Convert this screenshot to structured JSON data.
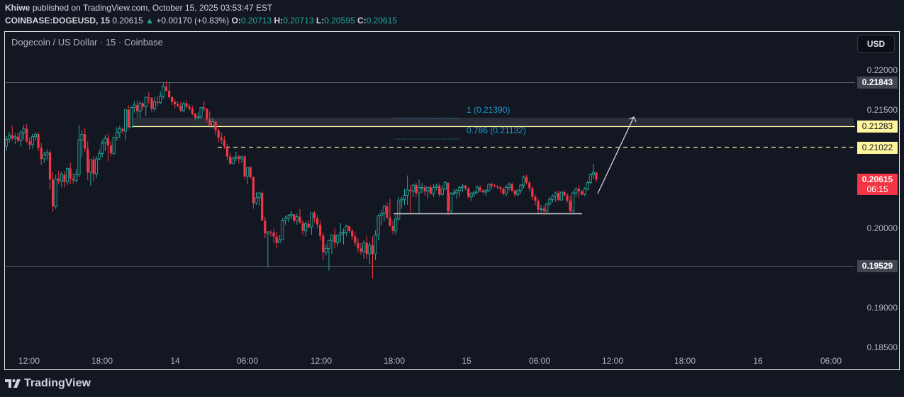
{
  "header": {
    "author": "Khiwe",
    "published_text": "published on TradingView.com, October 15, 2025 03:53:47 EST",
    "symbol": "COINBASE:DOGEUSD, 15",
    "last": "0.20615",
    "change_icon": "triangle-up-icon",
    "change": "+0.00170 (+0.83%)",
    "open_label": "O:",
    "open": "0.20713",
    "high_label": "H:",
    "high": "0.20713",
    "low_label": "L:",
    "low": "0.20595",
    "close_label": "C:",
    "close": "0.20615"
  },
  "chart_title": "Dogecoin / US Dollar · 15 · Coinbase",
  "currency_button": "USD",
  "price_axis": {
    "ticks": [
      "0.22000",
      "0.21500",
      "0.20000",
      "0.19000",
      "0.18500"
    ],
    "tags": {
      "level_high": "0.21843",
      "zone_line": "0.21283",
      "dashed_line": "0.21022",
      "current_price": "0.20615",
      "countdown": "06:15",
      "level_low": "0.19529"
    }
  },
  "time_axis": {
    "ticks": [
      "12:00",
      "18:00",
      "14",
      "06:00",
      "12:00",
      "18:00",
      "15",
      "06:00",
      "12:00",
      "18:00",
      "16",
      "06:00"
    ]
  },
  "fib": {
    "level_1": "1 (0.21390)",
    "level_0786": "0.786 (0.21132)"
  },
  "branding": {
    "logo_text": "TradingView",
    "logo_icon": "tradingview-logo-icon"
  },
  "colors": {
    "up": "#26a69a",
    "down": "#f23645",
    "background": "#131722",
    "zone": "#2a2e39",
    "yellow": "#fff59d",
    "fib": "#2196c8"
  },
  "chart_data": {
    "type": "candlestick",
    "title": "Dogecoin / US Dollar · 15 · Coinbase",
    "interval": "15m",
    "xlabel": "",
    "ylabel": "USD",
    "ylim": [
      0.1835,
      0.2225
    ],
    "x_ticks": [
      "12:00",
      "18:00",
      "14",
      "06:00",
      "12:00",
      "18:00",
      "15",
      "06:00",
      "12:00",
      "18:00",
      "16",
      "06:00"
    ],
    "y_ticks": [
      0.22,
      0.215,
      0.2,
      0.19,
      0.185
    ],
    "horizontal_levels": [
      {
        "price": 0.21843,
        "style": "solid",
        "color": "#787b86",
        "label": "0.21843"
      },
      {
        "price": 0.21283,
        "style": "solid",
        "color": "#fff59d",
        "label": "0.21283"
      },
      {
        "price": 0.21022,
        "style": "dashed",
        "color": "#fff59d",
        "label": "0.21022"
      },
      {
        "price": 0.19529,
        "style": "solid",
        "color": "#787b86",
        "label": "0.19529"
      }
    ],
    "zone": {
      "from": 0.21283,
      "to": 0.2139,
      "color": "#2a2e39"
    },
    "fibonacci": [
      {
        "level": 1,
        "price": 0.2139
      },
      {
        "level": 0.786,
        "price": 0.21132
      }
    ],
    "range_support": 0.20205,
    "projection_arrow": {
      "from_price": 0.204,
      "to_price": 0.2143
    },
    "last": {
      "open": 0.20713,
      "high": 0.20713,
      "low": 0.20595,
      "close": 0.20615,
      "change": 0.0017,
      "change_pct": 0.83
    },
    "candles": [
      [
        0.2104,
        0.2117,
        0.2098,
        0.2113
      ],
      [
        0.2113,
        0.2122,
        0.2108,
        0.2118
      ],
      [
        0.2118,
        0.213,
        0.2111,
        0.2114
      ],
      [
        0.2114,
        0.212,
        0.2107,
        0.2116
      ],
      [
        0.2116,
        0.2121,
        0.2109,
        0.2111
      ],
      [
        0.2111,
        0.2124,
        0.2104,
        0.2121
      ],
      [
        0.2121,
        0.2131,
        0.2113,
        0.2126
      ],
      [
        0.2126,
        0.2132,
        0.2108,
        0.211
      ],
      [
        0.211,
        0.2115,
        0.21,
        0.2106
      ],
      [
        0.2106,
        0.212,
        0.2101,
        0.2116
      ],
      [
        0.2116,
        0.2122,
        0.2111,
        0.2119
      ],
      [
        0.2119,
        0.2122,
        0.2098,
        0.2102
      ],
      [
        0.2102,
        0.2108,
        0.208,
        0.2088
      ],
      [
        0.2088,
        0.2097,
        0.2083,
        0.2093
      ],
      [
        0.2093,
        0.21,
        0.2086,
        0.2096
      ],
      [
        0.2096,
        0.2099,
        0.2049,
        0.2062
      ],
      [
        0.2062,
        0.2071,
        0.2021,
        0.2028
      ],
      [
        0.2028,
        0.2068,
        0.2025,
        0.2063
      ],
      [
        0.2063,
        0.2073,
        0.2056,
        0.206
      ],
      [
        0.206,
        0.2072,
        0.2052,
        0.2068
      ],
      [
        0.2068,
        0.2072,
        0.2052,
        0.2059
      ],
      [
        0.2059,
        0.2077,
        0.2055,
        0.2076
      ],
      [
        0.2076,
        0.2083,
        0.2056,
        0.2063
      ],
      [
        0.2063,
        0.207,
        0.2057,
        0.2061
      ],
      [
        0.2061,
        0.2075,
        0.2058,
        0.2068
      ],
      [
        0.2068,
        0.2131,
        0.2065,
        0.2112
      ],
      [
        0.2112,
        0.2124,
        0.209,
        0.2119
      ],
      [
        0.2119,
        0.2127,
        0.2096,
        0.2101
      ],
      [
        0.2101,
        0.211,
        0.2061,
        0.2071
      ],
      [
        0.2071,
        0.2086,
        0.2054,
        0.2087
      ],
      [
        0.2087,
        0.2091,
        0.206,
        0.2069
      ],
      [
        0.2069,
        0.2092,
        0.2064,
        0.2088
      ],
      [
        0.2088,
        0.21,
        0.2086,
        0.2095
      ],
      [
        0.2095,
        0.2112,
        0.209,
        0.2108
      ],
      [
        0.2108,
        0.2118,
        0.2098,
        0.2114
      ],
      [
        0.2114,
        0.212,
        0.2085,
        0.2105
      ],
      [
        0.2105,
        0.2111,
        0.2092,
        0.2095
      ],
      [
        0.2095,
        0.2116,
        0.2093,
        0.2115
      ],
      [
        0.2115,
        0.2128,
        0.2111,
        0.2121
      ],
      [
        0.2121,
        0.213,
        0.2114,
        0.2126
      ],
      [
        0.2126,
        0.2128,
        0.212,
        0.2123
      ],
      [
        0.2123,
        0.214,
        0.2112,
        0.215
      ],
      [
        0.215,
        0.2156,
        0.2126,
        0.2128
      ],
      [
        0.2128,
        0.2154,
        0.2128,
        0.2153
      ],
      [
        0.2153,
        0.2161,
        0.2146,
        0.2156
      ],
      [
        0.2156,
        0.2162,
        0.214,
        0.2148
      ],
      [
        0.2148,
        0.2161,
        0.2139,
        0.2158
      ],
      [
        0.2158,
        0.216,
        0.215,
        0.2154
      ],
      [
        0.2154,
        0.2162,
        0.2142,
        0.2166
      ],
      [
        0.2166,
        0.2172,
        0.2158,
        0.2165
      ],
      [
        0.2165,
        0.2166,
        0.2147,
        0.2151
      ],
      [
        0.2151,
        0.2166,
        0.2148,
        0.216
      ],
      [
        0.216,
        0.2167,
        0.2154,
        0.2159
      ],
      [
        0.2159,
        0.2173,
        0.2157,
        0.2167
      ],
      [
        0.2167,
        0.2184,
        0.2164,
        0.2179
      ],
      [
        0.2179,
        0.2186,
        0.2173,
        0.2174
      ],
      [
        0.2174,
        0.2184,
        0.2164,
        0.2166
      ],
      [
        0.2166,
        0.2167,
        0.2156,
        0.216
      ],
      [
        0.216,
        0.2163,
        0.2152,
        0.2157
      ],
      [
        0.2157,
        0.2161,
        0.2153,
        0.2155
      ],
      [
        0.2155,
        0.216,
        0.2147,
        0.2149
      ],
      [
        0.2149,
        0.216,
        0.2147,
        0.2158
      ],
      [
        0.2158,
        0.2162,
        0.2152,
        0.2154
      ],
      [
        0.2154,
        0.2157,
        0.2149,
        0.2151
      ],
      [
        0.2151,
        0.2155,
        0.2143,
        0.2145
      ],
      [
        0.2145,
        0.2146,
        0.2137,
        0.214
      ],
      [
        0.214,
        0.2147,
        0.2138,
        0.2141
      ],
      [
        0.2141,
        0.215,
        0.2138,
        0.2153
      ],
      [
        0.2153,
        0.2161,
        0.2148,
        0.2151
      ],
      [
        0.2151,
        0.2152,
        0.2134,
        0.2138
      ],
      [
        0.2138,
        0.2148,
        0.2127,
        0.213
      ],
      [
        0.213,
        0.214,
        0.2127,
        0.2135
      ],
      [
        0.2135,
        0.2136,
        0.2118,
        0.2124
      ],
      [
        0.2124,
        0.2126,
        0.2108,
        0.2115
      ],
      [
        0.2115,
        0.2121,
        0.2107,
        0.2112
      ],
      [
        0.2112,
        0.2117,
        0.2101,
        0.2104
      ],
      [
        0.2104,
        0.2107,
        0.2086,
        0.2091
      ],
      [
        0.2091,
        0.2095,
        0.208,
        0.2082
      ],
      [
        0.2082,
        0.209,
        0.2081,
        0.2089
      ],
      [
        0.2089,
        0.2097,
        0.2085,
        0.2091
      ],
      [
        0.2091,
        0.2093,
        0.2082,
        0.2088
      ],
      [
        0.2088,
        0.2092,
        0.2083,
        0.2091
      ],
      [
        0.2091,
        0.2093,
        0.2062,
        0.2066
      ],
      [
        0.2066,
        0.2072,
        0.2056,
        0.2077
      ],
      [
        0.2077,
        0.2079,
        0.2063,
        0.2065
      ],
      [
        0.2065,
        0.2066,
        0.2025,
        0.2032
      ],
      [
        0.2032,
        0.2046,
        0.203,
        0.2039
      ],
      [
        0.2039,
        0.2046,
        0.2029,
        0.2045
      ],
      [
        0.2045,
        0.2047,
        0.2017,
        0.201
      ],
      [
        0.201,
        0.2015,
        0.1988,
        0.1994
      ],
      [
        0.1994,
        0.1995,
        0.1951,
        0.1996
      ],
      [
        0.1996,
        0.1998,
        0.199,
        0.1995
      ],
      [
        0.1995,
        0.2,
        0.1982,
        0.199
      ],
      [
        0.199,
        0.1996,
        0.1975,
        0.1982
      ],
      [
        0.1982,
        0.1992,
        0.1983,
        0.1986
      ],
      [
        0.1986,
        0.2013,
        0.2002,
        0.201
      ],
      [
        0.201,
        0.2016,
        0.2005,
        0.2013
      ],
      [
        0.2013,
        0.2018,
        0.2008,
        0.2016
      ],
      [
        0.2016,
        0.2022,
        0.2012,
        0.2018
      ],
      [
        0.2018,
        0.2013,
        0.2007,
        0.201
      ],
      [
        0.201,
        0.2019,
        0.2005,
        0.2015
      ],
      [
        0.2015,
        0.2025,
        0.2009,
        0.2007
      ],
      [
        0.2007,
        0.2011,
        0.1992,
        0.1997
      ],
      [
        0.1997,
        0.2009,
        0.199,
        0.2006
      ],
      [
        0.2006,
        0.2011,
        0.2,
        0.2002
      ],
      [
        0.2002,
        0.2018,
        0.1992,
        0.202
      ],
      [
        0.202,
        0.2022,
        0.2008,
        0.2013
      ],
      [
        0.2013,
        0.2017,
        0.2,
        0.2005
      ],
      [
        0.2005,
        0.201,
        0.1985,
        0.1991
      ],
      [
        0.1991,
        0.1995,
        0.196,
        0.197
      ],
      [
        0.197,
        0.198,
        0.1966,
        0.1975
      ],
      [
        0.1975,
        0.1982,
        0.1947,
        0.1985
      ],
      [
        0.1985,
        0.199,
        0.1968,
        0.1992
      ],
      [
        0.1992,
        0.2,
        0.1975,
        0.1982
      ],
      [
        0.1982,
        0.1992,
        0.1977,
        0.1992
      ],
      [
        0.1992,
        0.2007,
        0.1982,
        0.1995
      ],
      [
        0.1995,
        0.2,
        0.198,
        0.1995
      ],
      [
        0.1995,
        0.2005,
        0.199,
        0.2003
      ],
      [
        0.2003,
        0.1998,
        0.1995,
        0.1997
      ],
      [
        0.1997,
        0.2,
        0.1985,
        0.199
      ],
      [
        0.199,
        0.1995,
        0.1978,
        0.1982
      ],
      [
        0.1982,
        0.1988,
        0.197,
        0.1975
      ],
      [
        0.1975,
        0.1982,
        0.1967,
        0.1971
      ],
      [
        0.1971,
        0.1985,
        0.1962,
        0.1982
      ],
      [
        0.1982,
        0.199,
        0.1962,
        0.1968
      ],
      [
        0.1968,
        0.1983,
        0.1955,
        0.1979
      ],
      [
        0.1979,
        0.199,
        0.1937,
        0.1968
      ],
      [
        0.1968,
        0.1998,
        0.196,
        0.1992
      ],
      [
        0.1992,
        0.2018,
        0.1985,
        0.2016
      ],
      [
        0.2016,
        0.2023,
        0.2004,
        0.2019
      ],
      [
        0.2019,
        0.203,
        0.2009,
        0.2028
      ],
      [
        0.2028,
        0.2032,
        0.2012,
        0.2014
      ],
      [
        0.2014,
        0.2038,
        0.2013,
        0.2003
      ],
      [
        0.2003,
        0.201,
        0.1993,
        0.1997
      ],
      [
        0.1997,
        0.2018,
        0.1992,
        0.2012
      ],
      [
        0.2012,
        0.204,
        0.201,
        0.2035
      ],
      [
        0.2035,
        0.204,
        0.2025,
        0.2037
      ],
      [
        0.2037,
        0.205,
        0.203,
        0.2042
      ],
      [
        0.2042,
        0.2067,
        0.203,
        0.2049
      ],
      [
        0.2049,
        0.2055,
        0.202,
        0.2047
      ],
      [
        0.2047,
        0.2056,
        0.204,
        0.2055
      ],
      [
        0.2055,
        0.2058,
        0.204,
        0.2045
      ],
      [
        0.2045,
        0.2062,
        0.202,
        0.2052
      ],
      [
        0.2052,
        0.2058,
        0.2045,
        0.2052
      ],
      [
        0.2052,
        0.2055,
        0.2042,
        0.2047
      ],
      [
        0.2047,
        0.2053,
        0.2038,
        0.2052
      ],
      [
        0.2052,
        0.2055,
        0.2043,
        0.2044
      ],
      [
        0.2044,
        0.2056,
        0.204,
        0.2052
      ],
      [
        0.2052,
        0.2057,
        0.2048,
        0.2054
      ],
      [
        0.2054,
        0.2057,
        0.204,
        0.2043
      ],
      [
        0.2043,
        0.2055,
        0.2042,
        0.205
      ],
      [
        0.205,
        0.206,
        0.2048,
        0.2058
      ],
      [
        0.2058,
        0.2051,
        0.2017,
        0.2022
      ],
      [
        0.2022,
        0.2046,
        0.2019,
        0.2044
      ],
      [
        0.2044,
        0.205,
        0.2042,
        0.2045
      ],
      [
        0.2045,
        0.205,
        0.2037,
        0.2048
      ],
      [
        0.2048,
        0.2054,
        0.204,
        0.2052
      ],
      [
        0.2052,
        0.2056,
        0.2046,
        0.2054
      ],
      [
        0.2054,
        0.2055,
        0.2048,
        0.2051
      ],
      [
        0.2051,
        0.2052,
        0.2038,
        0.204
      ],
      [
        0.204,
        0.2046,
        0.2035,
        0.2044
      ],
      [
        0.2044,
        0.2047,
        0.204,
        0.2046
      ],
      [
        0.2046,
        0.2055,
        0.2044,
        0.2052
      ],
      [
        0.2052,
        0.2055,
        0.2046,
        0.2048
      ],
      [
        0.2048,
        0.205,
        0.2044,
        0.2046
      ],
      [
        0.2046,
        0.205,
        0.2041,
        0.2048
      ],
      [
        0.2048,
        0.2057,
        0.2046,
        0.2056
      ],
      [
        0.2056,
        0.2058,
        0.205,
        0.2054
      ],
      [
        0.2054,
        0.2056,
        0.2052,
        0.2053
      ],
      [
        0.2053,
        0.2055,
        0.205,
        0.2052
      ],
      [
        0.2052,
        0.2054,
        0.2045,
        0.205
      ],
      [
        0.205,
        0.2052,
        0.2042,
        0.2044
      ],
      [
        0.2044,
        0.2055,
        0.2041,
        0.2052
      ],
      [
        0.2052,
        0.2058,
        0.2048,
        0.2056
      ],
      [
        0.2056,
        0.2058,
        0.2046,
        0.2048
      ],
      [
        0.2048,
        0.205,
        0.204,
        0.2043
      ],
      [
        0.2043,
        0.205,
        0.2041,
        0.2048
      ],
      [
        0.2048,
        0.2056,
        0.2044,
        0.2055
      ],
      [
        0.2055,
        0.2067,
        0.2051,
        0.2065
      ],
      [
        0.2065,
        0.2068,
        0.2056,
        0.2058
      ],
      [
        0.2058,
        0.206,
        0.2047,
        0.2051
      ],
      [
        0.2051,
        0.2053,
        0.2036,
        0.204
      ],
      [
        0.204,
        0.2043,
        0.203,
        0.2035
      ],
      [
        0.2035,
        0.2037,
        0.2018,
        0.2024
      ],
      [
        0.2024,
        0.203,
        0.2018,
        0.2025
      ],
      [
        0.2025,
        0.2029,
        0.2018,
        0.2022
      ],
      [
        0.2022,
        0.2033,
        0.202,
        0.2031
      ],
      [
        0.2031,
        0.204,
        0.2029,
        0.2037
      ],
      [
        0.2037,
        0.2043,
        0.2033,
        0.2041
      ],
      [
        0.2041,
        0.2047,
        0.2034,
        0.2045
      ],
      [
        0.2045,
        0.2048,
        0.2035,
        0.2036
      ],
      [
        0.2036,
        0.2047,
        0.2035,
        0.2046
      ],
      [
        0.2046,
        0.2049,
        0.204,
        0.2042
      ],
      [
        0.2042,
        0.2045,
        0.2033,
        0.2035
      ],
      [
        0.2035,
        0.2041,
        0.202,
        0.2022
      ],
      [
        0.2022,
        0.2047,
        0.202,
        0.2045
      ],
      [
        0.2045,
        0.2052,
        0.204,
        0.205
      ],
      [
        0.205,
        0.2054,
        0.2038,
        0.2047
      ],
      [
        0.2047,
        0.2049,
        0.2042,
        0.2043
      ],
      [
        0.2043,
        0.2052,
        0.2041,
        0.205
      ],
      [
        0.205,
        0.206,
        0.2048,
        0.2058
      ],
      [
        0.2058,
        0.207,
        0.2056,
        0.2068
      ],
      [
        0.2068,
        0.2082,
        0.2063,
        0.2071
      ],
      [
        0.2071,
        0.2071,
        0.2059,
        0.2062
      ]
    ]
  }
}
